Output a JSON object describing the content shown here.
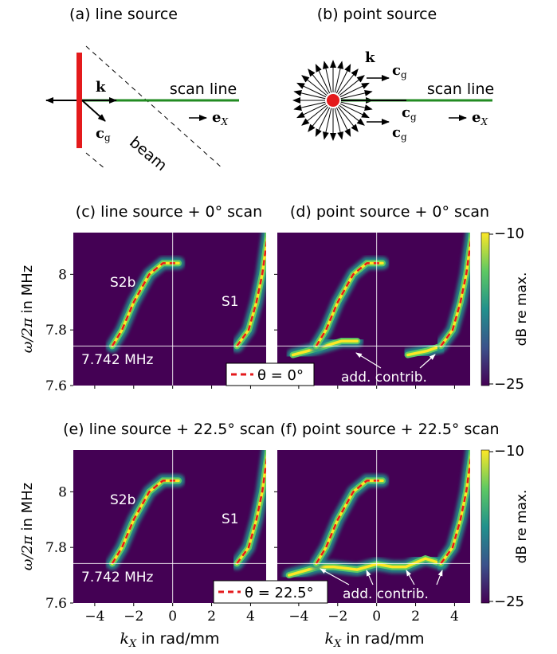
{
  "panels": {
    "a": {
      "title": "(a) line source",
      "k": "k",
      "cg_main": "c",
      "cg_sub": "g",
      "scan": "scan line",
      "ex": "e",
      "ex_sub": "X",
      "beam": "beam"
    },
    "b": {
      "title": "(b) point source",
      "k": "k",
      "cg_main": "c",
      "cg_sub": "g",
      "scan": "scan line",
      "ex": "e",
      "ex_sub": "X"
    },
    "c": {
      "title": "(c) line source + 0° scan",
      "s2b": "S2b",
      "s1": "S1",
      "freq": "7.742 MHz"
    },
    "d": {
      "title": "(d) point source + 0° scan",
      "legend": "θ = 0°",
      "contrib": "add. contrib."
    },
    "e": {
      "title": "(e) line source + 22.5° scan",
      "s2b": "S2b",
      "s1": "S1",
      "freq": "7.742 MHz"
    },
    "f": {
      "title": "(f) point source + 22.5° scan",
      "legend": "θ = 22.5°",
      "contrib": "add. contrib."
    }
  },
  "axes": {
    "ylabel": "ω/2π in MHz",
    "xlabel": "kX in rad/mm",
    "xlabel_main": "k",
    "xlabel_sub": "X",
    "xlabel_rest": " in rad/mm",
    "ylabel_math": "ω/2π",
    "ylabel_rest": " in MHz",
    "yticks": [
      "8",
      "7.8",
      "7.6"
    ],
    "xticks": [
      "−4",
      "−2",
      "0",
      "2",
      "4"
    ]
  },
  "colorbar": {
    "label": "dB re max.",
    "max": "−10",
    "min": "−25"
  },
  "chart_data": [
    {
      "type": "heatmap",
      "panel": "c",
      "xlim": [
        -5.1,
        4.8
      ],
      "ylim": [
        7.6,
        8.15
      ],
      "hline": 7.742,
      "vline": 0,
      "curves": [
        {
          "name": "S2b",
          "points": [
            [
              -3.1,
              7.742
            ],
            [
              -2.6,
              7.8
            ],
            [
              -2.0,
              7.9
            ],
            [
              -1.2,
              8.0
            ],
            [
              -0.5,
              8.04
            ],
            [
              0.3,
              8.04
            ]
          ]
        },
        {
          "name": "S1",
          "points": [
            [
              3.3,
              7.742
            ],
            [
              3.9,
              7.8
            ],
            [
              4.3,
              7.9
            ],
            [
              4.6,
              8.0
            ],
            [
              4.9,
              8.15
            ]
          ]
        }
      ]
    },
    {
      "type": "heatmap",
      "panel": "d",
      "xlim": [
        -5.1,
        4.8
      ],
      "ylim": [
        7.6,
        8.15
      ],
      "hline": 7.742,
      "vline": 0,
      "curves": [
        {
          "points": [
            [
              -3.1,
              7.742
            ],
            [
              -2.6,
              7.8
            ],
            [
              -2.0,
              7.9
            ],
            [
              -1.2,
              8.0
            ],
            [
              -0.5,
              8.04
            ],
            [
              0.3,
              8.04
            ]
          ]
        },
        {
          "points": [
            [
              3.3,
              7.742
            ],
            [
              3.9,
              7.8
            ],
            [
              4.3,
              7.9
            ],
            [
              4.6,
              8.0
            ],
            [
              4.9,
              8.15
            ]
          ]
        }
      ],
      "extra": [
        {
          "points": [
            [
              -4.3,
              7.71
            ],
            [
              -3.0,
              7.735
            ],
            [
              -1.8,
              7.76
            ],
            [
              -1.0,
              7.76
            ]
          ]
        },
        {
          "points": [
            [
              1.6,
              7.71
            ],
            [
              2.6,
              7.725
            ],
            [
              3.3,
              7.742
            ]
          ]
        }
      ]
    },
    {
      "type": "heatmap",
      "panel": "e",
      "xlim": [
        -5.1,
        4.8
      ],
      "ylim": [
        7.6,
        8.15
      ],
      "hline": 7.742,
      "vline": 0,
      "curves": [
        {
          "points": [
            [
              -3.1,
              7.742
            ],
            [
              -2.6,
              7.8
            ],
            [
              -2.0,
              7.9
            ],
            [
              -1.2,
              8.0
            ],
            [
              -0.5,
              8.04
            ],
            [
              0.3,
              8.04
            ]
          ]
        },
        {
          "points": [
            [
              3.3,
              7.742
            ],
            [
              3.9,
              7.8
            ],
            [
              4.3,
              7.9
            ],
            [
              4.6,
              8.0
            ],
            [
              4.9,
              8.15
            ]
          ]
        }
      ]
    },
    {
      "type": "heatmap",
      "panel": "f",
      "xlim": [
        -5.1,
        4.8
      ],
      "ylim": [
        7.6,
        8.15
      ],
      "hline": 7.742,
      "vline": 0,
      "curves": [
        {
          "points": [
            [
              -3.1,
              7.742
            ],
            [
              -2.6,
              7.8
            ],
            [
              -2.0,
              7.9
            ],
            [
              -1.2,
              8.0
            ],
            [
              -0.5,
              8.04
            ],
            [
              0.3,
              8.04
            ]
          ]
        },
        {
          "points": [
            [
              3.3,
              7.742
            ],
            [
              3.9,
              7.8
            ],
            [
              4.3,
              7.9
            ],
            [
              4.6,
              8.0
            ],
            [
              4.9,
              8.15
            ]
          ]
        }
      ],
      "extra": [
        {
          "points": [
            [
              -4.5,
              7.7
            ],
            [
              -3.0,
              7.73
            ],
            [
              -2.2,
              7.73
            ],
            [
              -1.0,
              7.72
            ],
            [
              0.0,
              7.74
            ],
            [
              0.8,
              7.73
            ],
            [
              1.5,
              7.73
            ],
            [
              2.5,
              7.76
            ],
            [
              3.3,
              7.742
            ]
          ]
        }
      ]
    }
  ]
}
